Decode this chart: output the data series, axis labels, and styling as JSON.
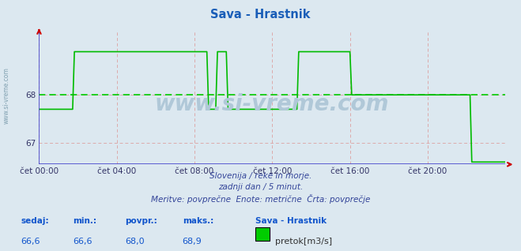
{
  "title": "Sava - Hrastnik",
  "title_color": "#1a5eb8",
  "bg_color": "#dce8f0",
  "plot_bg_color": "#dce8f0",
  "line_color": "#00bb00",
  "avg_line_color": "#00cc00",
  "avg_line_value": 68.0,
  "vgrid_color": "#ddaaaa",
  "hgrid_color": "#ddaaaa",
  "axis_color": "#4444cc",
  "arrow_color": "#cc0000",
  "y_min": 66.55,
  "y_max": 69.35,
  "yticks": [
    67,
    68
  ],
  "x_min": 0,
  "x_max": 288,
  "xtick_positions": [
    0,
    48,
    96,
    144,
    192,
    240
  ],
  "xtick_labels": [
    "čet 00:00",
    "čet 04:00",
    "čet 08:00",
    "čet 12:00",
    "čet 16:00",
    "čet 20:00"
  ],
  "watermark": "www.si-vreme.com",
  "subtitle1": "Slovenija / reke in morje.",
  "subtitle2": "zadnji dan / 5 minut.",
  "subtitle3": "Meritve: povprečne  Enote: metrične  Črta: povprečje",
  "legend_station": "Sava - Hrastnik",
  "legend_label": "pretok[m3/s]",
  "stat_sedaj": "66,6",
  "stat_min": "66,6",
  "stat_povpr": "68,0",
  "stat_maks": "68,9",
  "watermark_color": "#b0c8d8",
  "left_watermark_color": "#7799aa",
  "data_values": [
    67.7,
    67.7,
    67.7,
    67.7,
    67.7,
    67.7,
    67.7,
    67.7,
    67.7,
    67.7,
    67.7,
    67.7,
    67.7,
    67.7,
    67.7,
    67.7,
    67.7,
    67.7,
    67.7,
    67.7,
    68.9,
    68.9,
    68.9,
    68.9,
    68.9,
    68.9,
    68.9,
    68.9,
    68.9,
    68.9,
    68.9,
    68.9,
    68.9,
    68.9,
    68.9,
    68.9,
    68.9,
    68.9,
    68.9,
    68.9,
    68.9,
    68.9,
    68.9,
    68.9,
    68.9,
    68.9,
    68.9,
    68.9,
    68.9,
    68.9,
    68.9,
    68.9,
    68.9,
    68.9,
    68.9,
    68.9,
    68.9,
    68.9,
    68.9,
    68.9,
    68.9,
    68.9,
    68.9,
    68.9,
    68.9,
    68.9,
    68.9,
    68.9,
    68.9,
    68.9,
    68.9,
    68.9,
    68.9,
    68.9,
    68.9,
    68.9,
    68.9,
    68.9,
    68.9,
    68.9,
    68.9,
    68.9,
    68.9,
    68.9,
    68.9,
    68.9,
    68.9,
    68.9,
    68.9,
    68.9,
    68.9,
    68.9,
    68.9,
    68.9,
    68.9,
    68.9,
    67.7,
    67.7,
    67.7,
    67.7,
    67.7,
    68.9,
    68.9,
    68.9,
    68.9,
    68.9,
    68.9,
    67.7,
    67.7,
    67.7,
    67.7,
    67.7,
    67.7,
    67.7,
    67.7,
    67.7,
    67.7,
    67.7,
    67.7,
    67.7,
    67.7,
    67.7,
    67.7,
    67.7,
    67.7,
    67.7,
    67.7,
    67.7,
    67.7,
    67.7,
    67.7,
    67.7,
    67.7,
    67.7,
    67.7,
    67.7,
    67.7,
    67.7,
    67.7,
    67.7,
    67.7,
    67.7,
    67.7,
    67.7,
    67.7,
    67.7,
    67.7,
    68.9,
    68.9,
    68.9,
    68.9,
    68.9,
    68.9,
    68.9,
    68.9,
    68.9,
    68.9,
    68.9,
    68.9,
    68.9,
    68.9,
    68.9,
    68.9,
    68.9,
    68.9,
    68.9,
    68.9,
    68.9,
    68.9,
    68.9,
    68.9,
    68.9,
    68.9,
    68.9,
    68.9,
    68.9,
    68.9,
    68.0,
    68.0,
    68.0,
    68.0,
    68.0,
    68.0,
    68.0,
    68.0,
    68.0,
    68.0,
    68.0,
    68.0,
    68.0,
    68.0,
    68.0,
    68.0,
    68.0,
    68.0,
    68.0,
    68.0,
    68.0,
    68.0,
    68.0,
    68.0,
    68.0,
    68.0,
    68.0,
    68.0,
    68.0,
    68.0,
    68.0,
    68.0,
    68.0,
    68.0,
    68.0,
    68.0,
    68.0,
    68.0,
    68.0,
    68.0,
    68.0,
    68.0,
    68.0,
    68.0,
    68.0,
    68.0,
    68.0,
    68.0,
    68.0,
    68.0,
    68.0,
    68.0,
    68.0,
    68.0,
    68.0,
    68.0,
    68.0,
    68.0,
    68.0,
    68.0,
    68.0,
    68.0,
    68.0,
    68.0,
    68.0,
    68.0,
    68.0,
    68.0,
    66.6,
    66.6,
    66.6,
    66.6,
    66.6,
    66.6,
    66.6,
    66.6,
    66.6,
    66.6,
    66.6,
    66.6,
    66.6,
    66.6,
    66.6,
    66.6,
    66.6,
    66.6,
    66.6,
    66.6
  ]
}
